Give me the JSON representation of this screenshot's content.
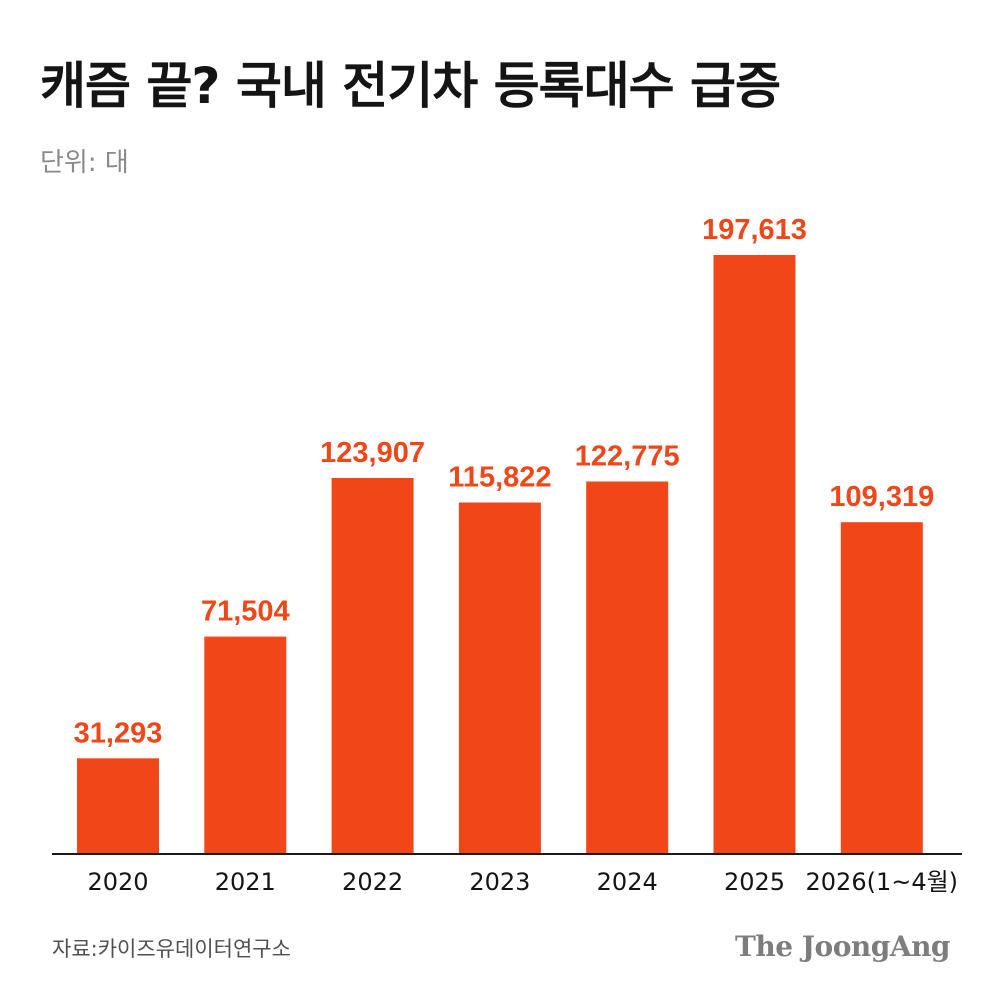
{
  "title": "캐즘 끝? 국내 전기차 등록대수 급증",
  "unit_label": "단위: 대",
  "source": "자료:카이즈유데이터연구소",
  "brand": "The JoongAng",
  "colors": {
    "bar": "#F04618",
    "label": "#F04618",
    "axis": "#1a1a1a",
    "text": "#141414"
  },
  "chart_data": {
    "type": "bar",
    "title": "캐즘 끝? 국내 전기차 등록대수 급증",
    "subtitle": "단위: 대",
    "xlabel": "",
    "ylabel": "",
    "categories": [
      "2020",
      "2021",
      "2022",
      "2023",
      "2024",
      "2025",
      "2026(1~4월)"
    ],
    "values": [
      31293,
      71504,
      123907,
      115822,
      122775,
      197613,
      109319
    ],
    "value_labels": [
      "31,293",
      "71,504",
      "123,907",
      "115,822",
      "122,775",
      "197,613",
      "109,319"
    ],
    "ylim": [
      0,
      197613
    ],
    "grid": false,
    "legend": "none"
  }
}
